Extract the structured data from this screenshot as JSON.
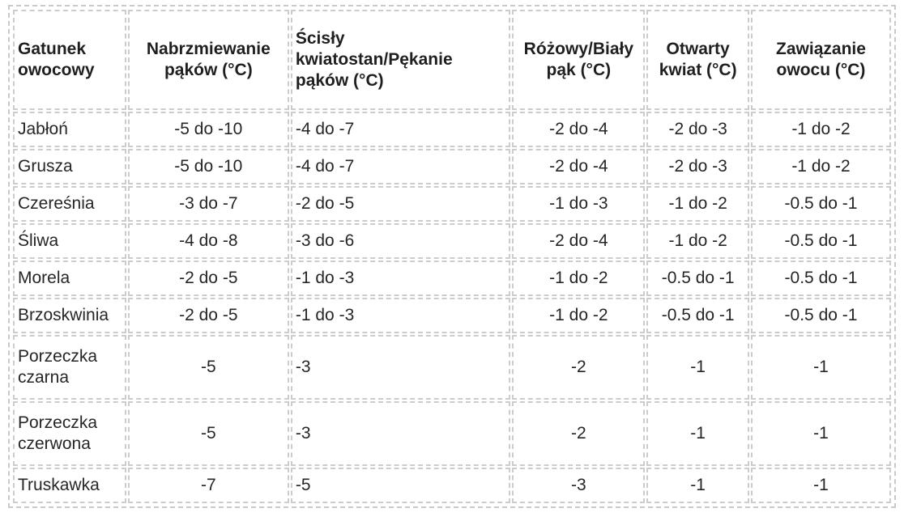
{
  "table": {
    "headers": [
      "Gatunek owocowy",
      "Nabrzmiewanie pąków (°C)",
      "Ścisły kwiatostan/Pękanie pąków (°C)",
      "Różowy/Biały pąk (°C)",
      "Otwarty kwiat (°C)",
      "Zawiązanie owocu (°C)"
    ],
    "rows": [
      [
        "Jabłoń",
        "-5 do -10",
        "-4 do -7",
        "-2 do -4",
        "-2 do -3",
        "-1 do -2"
      ],
      [
        "Grusza",
        "-5 do -10",
        "-4 do -7",
        "-2 do -4",
        "-2 do -3",
        "-1 do -2"
      ],
      [
        "Czereśnia",
        "-3 do -7",
        "-2 do -5",
        "-1 do -3",
        "-1 do -2",
        "-0.5 do -1"
      ],
      [
        "Śliwa",
        "-4 do -8",
        "-3 do -6",
        "-2 do -4",
        "-1 do -2",
        "-0.5 do -1"
      ],
      [
        "Morela",
        "-2 do -5",
        "-1 do -3",
        "-1 do -2",
        "-0.5 do -1",
        "-0.5 do -1"
      ],
      [
        "Brzoskwinia",
        "-2 do -5",
        "-1 do -3",
        "-1 do -2",
        "-0.5 do -1",
        "-0.5 do -1"
      ],
      [
        "Porzeczka czarna",
        "-5",
        "-3",
        "-2",
        "-1",
        "-1"
      ],
      [
        "Porzeczka czerwona",
        "-5",
        "-3",
        "-2",
        "-1",
        "-1"
      ],
      [
        "Truskawka",
        "-7",
        "-5",
        "-3",
        "-1",
        "-1"
      ]
    ]
  }
}
